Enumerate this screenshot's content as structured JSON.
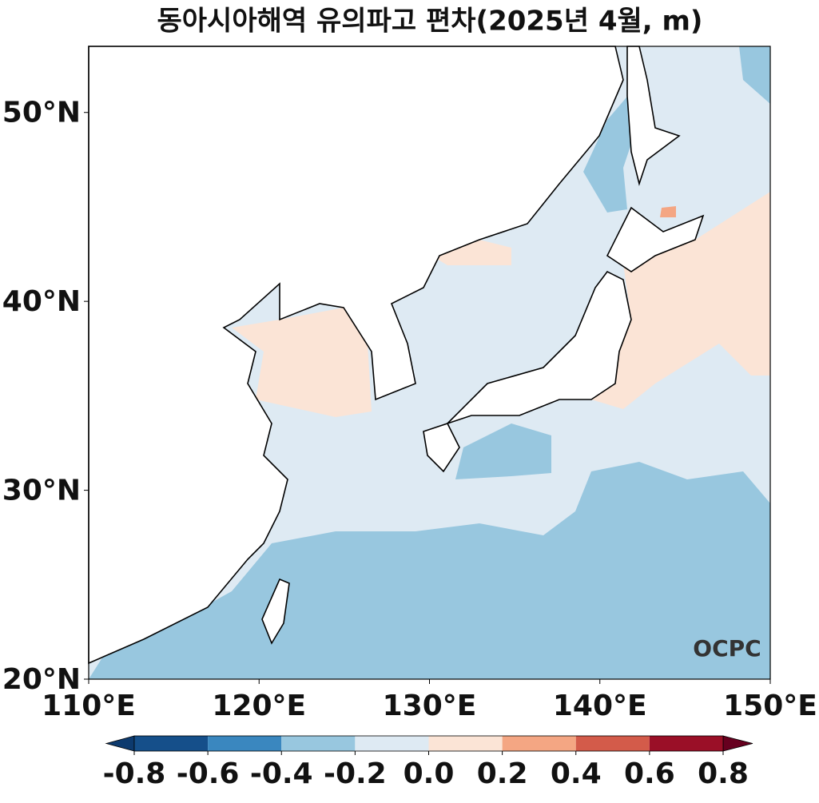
{
  "chart_data": {
    "type": "map",
    "title": "동아시아해역 유의파고 편차(2025년 4월, m)",
    "xlim": [
      110,
      150
    ],
    "ylim": [
      20,
      53.5
    ],
    "xticks": [
      {
        "value": 110,
        "label": "110°E"
      },
      {
        "value": 120,
        "label": "120°E"
      },
      {
        "value": 130,
        "label": "130°E"
      },
      {
        "value": 140,
        "label": "140°E"
      },
      {
        "value": 150,
        "label": "150°E"
      }
    ],
    "yticks": [
      {
        "value": 20,
        "label": "20°N"
      },
      {
        "value": 30,
        "label": "30°N"
      },
      {
        "value": 40,
        "label": "40°N"
      },
      {
        "value": 50,
        "label": "50°N"
      }
    ],
    "colorbar": {
      "ticks": [
        -0.8,
        -0.6,
        -0.4,
        -0.2,
        {
          "value": 0,
          "label": "0.0"
        },
        0.2,
        0.4,
        0.6,
        0.8
      ],
      "colors": [
        "#154f8a",
        "#3a87bf",
        "#98c7df",
        "#deeaf3",
        "#fbe4d6",
        "#f4a683",
        "#d35b4a",
        "#9a0f27"
      ],
      "under_color": "#0d3a6e",
      "over_color": "#67001f"
    },
    "logo": "OCPC"
  }
}
